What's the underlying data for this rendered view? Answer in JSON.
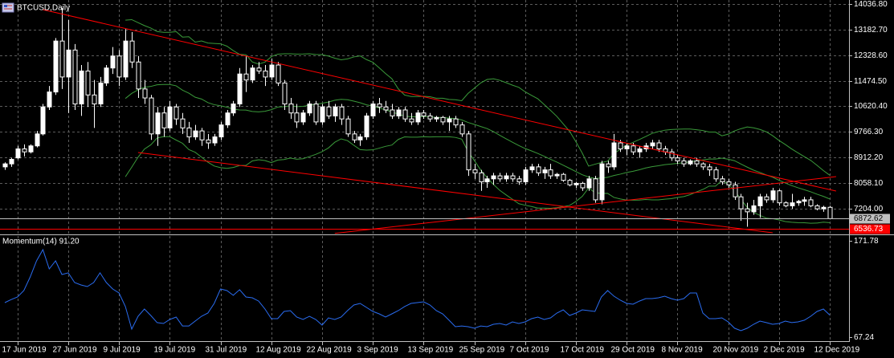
{
  "chart_data": [
    {
      "type": "candlestick",
      "title": "BTCUSD,Daily",
      "categories": [
        null,
        null,
        "17 Jun 2019",
        null,
        null,
        null,
        null,
        null,
        null,
        null,
        "27 Jun 2019",
        null,
        null,
        null,
        null,
        null,
        null,
        null,
        "9 Jul 2019",
        null,
        null,
        null,
        null,
        null,
        null,
        null,
        "19 Jul 2019",
        null,
        null,
        null,
        null,
        null,
        null,
        null,
        "31 Jul 2019",
        null,
        null,
        null,
        null,
        null,
        null,
        null,
        "12 Aug 2019",
        null,
        null,
        null,
        null,
        null,
        null,
        null,
        "22 Aug 2019",
        null,
        null,
        null,
        null,
        null,
        null,
        null,
        "3 Sep 2019",
        null,
        null,
        null,
        null,
        null,
        null,
        null,
        "13 Sep 2019",
        null,
        null,
        null,
        null,
        null,
        null,
        null,
        "25 Sep 2019",
        null,
        null,
        null,
        null,
        null,
        null,
        null,
        "7 Oct 2019",
        null,
        null,
        null,
        null,
        null,
        null,
        null,
        "17 Oct 2019",
        null,
        null,
        null,
        null,
        null,
        null,
        null,
        "29 Oct 2019",
        null,
        null,
        null,
        null,
        null,
        null,
        null,
        "8 Nov 2019",
        null,
        null,
        null,
        null,
        null,
        null,
        null,
        "20 Nov 2019",
        null,
        null,
        null,
        null,
        null,
        null,
        null,
        "2 Dec 2019",
        null,
        null,
        null,
        null,
        null,
        null,
        null,
        "12 Dec 2019"
      ],
      "ohlc": [
        [
          8600,
          8750,
          8500,
          8700
        ],
        [
          8700,
          8900,
          8600,
          8850
        ],
        [
          8900,
          9300,
          8850,
          9200
        ],
        [
          9200,
          9350,
          8950,
          9100
        ],
        [
          9100,
          9350,
          9050,
          9300
        ],
        [
          9300,
          9800,
          9250,
          9700
        ],
        [
          9700,
          10700,
          9650,
          10600
        ],
        [
          10600,
          11300,
          10500,
          11100
        ],
        [
          11100,
          12900,
          11000,
          12800
        ],
        [
          12800,
          13900,
          11200,
          11600
        ],
        [
          11600,
          13500,
          10400,
          12500
        ],
        [
          12500,
          12700,
          10500,
          10700
        ],
        [
          10700,
          12000,
          10300,
          11800
        ],
        [
          11800,
          12100,
          10600,
          11000
        ],
        [
          11000,
          11500,
          9900,
          10700
        ],
        [
          10700,
          11600,
          10600,
          11400
        ],
        [
          11400,
          12000,
          11300,
          11900
        ],
        [
          11900,
          12600,
          11700,
          12300
        ],
        [
          12300,
          12500,
          11300,
          11600
        ],
        [
          11600,
          13200,
          11500,
          12800
        ],
        [
          12800,
          13100,
          11900,
          12100
        ],
        [
          12100,
          12300,
          10900,
          11200
        ],
        [
          11200,
          11500,
          10700,
          10900
        ],
        [
          10900,
          11000,
          9500,
          9700
        ],
        [
          9700,
          10600,
          9300,
          10400
        ],
        [
          10400,
          10600,
          9600,
          9900
        ],
        [
          9900,
          10800,
          9800,
          10600
        ],
        [
          10600,
          10700,
          10000,
          10200
        ],
        [
          10200,
          10400,
          9700,
          9900
        ],
        [
          9900,
          10100,
          9400,
          9600
        ],
        [
          9600,
          10000,
          9500,
          9800
        ],
        [
          9800,
          9900,
          9300,
          9500
        ],
        [
          9500,
          9700,
          9200,
          9400
        ],
        [
          9400,
          9700,
          9300,
          9600
        ],
        [
          9600,
          10100,
          9500,
          10000
        ],
        [
          10000,
          10500,
          9900,
          10400
        ],
        [
          10400,
          10800,
          10300,
          10700
        ],
        [
          10700,
          11900,
          10600,
          11700
        ],
        [
          11700,
          12300,
          11100,
          11500
        ],
        [
          11500,
          12000,
          11400,
          11900
        ],
        [
          11900,
          12100,
          11700,
          11800
        ],
        [
          11800,
          12000,
          11300,
          11600
        ],
        [
          11600,
          12200,
          11500,
          12000
        ],
        [
          12000,
          12100,
          11300,
          11400
        ],
        [
          11400,
          11500,
          10500,
          10700
        ],
        [
          10700,
          10900,
          10200,
          10400
        ],
        [
          10400,
          10700,
          9900,
          10100
        ],
        [
          10100,
          10500,
          10000,
          10400
        ],
        [
          10400,
          10800,
          10300,
          10700
        ],
        [
          10700,
          10800,
          10000,
          10100
        ],
        [
          10100,
          10700,
          10000,
          10600
        ],
        [
          10600,
          10800,
          10200,
          10300
        ],
        [
          10300,
          10700,
          10100,
          10600
        ],
        [
          10600,
          10700,
          10000,
          10200
        ],
        [
          10200,
          10300,
          9600,
          9700
        ],
        [
          9700,
          9800,
          9400,
          9500
        ],
        [
          9500,
          9700,
          9300,
          9600
        ],
        [
          9600,
          10400,
          9500,
          10300
        ],
        [
          10300,
          10800,
          10200,
          10700
        ],
        [
          10700,
          10900,
          10400,
          10600
        ],
        [
          10600,
          10800,
          10400,
          10500
        ],
        [
          10500,
          10700,
          10200,
          10300
        ],
        [
          10300,
          10600,
          10200,
          10500
        ],
        [
          10500,
          10600,
          10100,
          10200
        ],
        [
          10200,
          10400,
          10000,
          10100
        ],
        [
          10100,
          10500,
          10000,
          10400
        ],
        [
          10400,
          10500,
          10200,
          10300
        ],
        [
          10300,
          10400,
          10100,
          10200
        ],
        [
          10200,
          10300,
          10100,
          10250
        ],
        [
          10250,
          10300,
          10000,
          10100
        ],
        [
          10100,
          10300,
          9800,
          10200
        ],
        [
          10200,
          10300,
          9900,
          10000
        ],
        [
          10000,
          10100,
          9600,
          9700
        ],
        [
          9700,
          9800,
          8300,
          8500
        ],
        [
          8500,
          8700,
          8200,
          8400
        ],
        [
          8400,
          8500,
          7800,
          8100
        ],
        [
          8100,
          8300,
          7900,
          8200
        ],
        [
          8200,
          8400,
          8000,
          8300
        ],
        [
          8300,
          8400,
          8100,
          8200
        ],
        [
          8200,
          8400,
          8100,
          8300
        ],
        [
          8300,
          8400,
          8100,
          8200
        ],
        [
          8200,
          8300,
          8000,
          8100
        ],
        [
          8100,
          8600,
          8000,
          8500
        ],
        [
          8500,
          8700,
          8400,
          8600
        ],
        [
          8600,
          8700,
          8300,
          8400
        ],
        [
          8400,
          8600,
          8200,
          8500
        ],
        [
          8500,
          8700,
          8200,
          8300
        ],
        [
          8300,
          8400,
          8200,
          8350
        ],
        [
          8350,
          8400,
          8100,
          8150
        ],
        [
          8150,
          8200,
          7950,
          8000
        ],
        [
          8000,
          8100,
          7900,
          8050
        ],
        [
          8050,
          8100,
          7800,
          7900
        ],
        [
          7900,
          8300,
          7800,
          8200
        ],
        [
          8200,
          8300,
          7400,
          7500
        ],
        [
          7500,
          8800,
          7350,
          8700
        ],
        [
          8700,
          8800,
          8400,
          8600
        ],
        [
          8600,
          9700,
          8500,
          9400
        ],
        [
          9400,
          9500,
          9100,
          9200
        ],
        [
          9200,
          9400,
          9000,
          9300
        ],
        [
          9300,
          9400,
          9000,
          9100
        ],
        [
          9100,
          9300,
          8900,
          9200
        ],
        [
          9200,
          9400,
          9100,
          9300
        ],
        [
          9300,
          9500,
          9200,
          9400
        ],
        [
          9400,
          9500,
          9100,
          9200
        ],
        [
          9200,
          9300,
          9000,
          9100
        ],
        [
          9100,
          9200,
          8800,
          8900
        ],
        [
          8900,
          9000,
          8700,
          8800
        ],
        [
          8800,
          8900,
          8600,
          8700
        ],
        [
          8700,
          8850,
          8650,
          8800
        ],
        [
          8800,
          8900,
          8600,
          8700
        ],
        [
          8700,
          8750,
          8500,
          8600
        ],
        [
          8600,
          8700,
          8300,
          8500
        ],
        [
          8500,
          8600,
          8100,
          8200
        ],
        [
          8200,
          8300,
          8000,
          8100
        ],
        [
          8100,
          8200,
          7900,
          8000
        ],
        [
          8000,
          8100,
          7500,
          7600
        ],
        [
          7600,
          7700,
          6800,
          7200
        ],
        [
          7200,
          7400,
          6600,
          7100
        ],
        [
          7100,
          7500,
          7000,
          7300
        ],
        [
          7300,
          7700,
          6900,
          7600
        ],
        [
          7600,
          7700,
          7400,
          7500
        ],
        [
          7500,
          7900,
          7400,
          7800
        ],
        [
          7800,
          7850,
          7300,
          7400
        ],
        [
          7400,
          7450,
          7250,
          7300
        ],
        [
          7300,
          7700,
          7200,
          7400
        ],
        [
          7400,
          7500,
          7300,
          7450
        ],
        [
          7450,
          7600,
          7300,
          7500
        ],
        [
          7500,
          7600,
          7250,
          7300
        ],
        [
          7300,
          7350,
          7150,
          7200
        ],
        [
          7200,
          7300,
          7100,
          7250
        ],
        [
          7250,
          7300,
          6850,
          6872.62
        ]
      ],
      "ylim": [
        6373,
        14170
      ],
      "yticks": [
        {
          "value": 14036.8,
          "label": "14036.80"
        },
        {
          "value": 13182.7,
          "label": "13182.70"
        },
        {
          "value": 12328.6,
          "label": "12328.60"
        },
        {
          "value": 11474.5,
          "label": "11474.50"
        },
        {
          "value": 10620.4,
          "label": "10620.40"
        },
        {
          "value": 9766.3,
          "label": "9766.30"
        },
        {
          "value": 8912.2,
          "label": "8912.20"
        },
        {
          "value": 8058.1,
          "label": "8058.10"
        },
        {
          "value": 7204,
          "label": "7204.00"
        }
      ],
      "current_price": {
        "value": 6872.62,
        "label": "6872.62",
        "color": "#c0c0c0"
      },
      "level": {
        "value": 6536.73,
        "label": "6536.73",
        "color": "#ff0000"
      },
      "trendlines": [
        {
          "from": [
            6,
            13849
          ],
          "to": [
            131,
            7792
          ]
        },
        {
          "from": [
            21,
            9079
          ],
          "to": [
            121,
            6399
          ]
        },
        {
          "from": [
            52,
            6380
          ],
          "to": [
            131,
            8275
          ]
        }
      ],
      "trendline_color": "#ff0000",
      "up_color": "#ffffff",
      "down_color": "#000000",
      "wick_color": "#ffffff",
      "band_color": "#3a9a3a",
      "grid": true
    },
    {
      "type": "line",
      "title": "Momentum(14) 91.20",
      "color": "#2a6cf0",
      "values": [
        104.7,
        108,
        110.8,
        117.8,
        132.6,
        150,
        162.2,
        141.3,
        150,
        135.2,
        137,
        126.5,
        123.9,
        122.1,
        126.5,
        137,
        126.5,
        119.5,
        115.2,
        100.4,
        76,
        89.9,
        97.7,
        90.8,
        83,
        82.1,
        86.4,
        89,
        79.4,
        79.4,
        84.7,
        89.9,
        93.4,
        103.8,
        119.5,
        117.8,
        112.6,
        118.7,
        110.8,
        109.9,
        106.4,
        97.7,
        87.3,
        87.3,
        95.1,
        96,
        89,
        86.4,
        89.9,
        86.4,
        80.3,
        88.2,
        86.4,
        89,
        96,
        102.1,
        103.8,
        99.5,
        95.1,
        92.5,
        89,
        92.5,
        96,
        100.4,
        103.8,
        104.7,
        105.6,
        102.1,
        96,
        92.5,
        85.6,
        78.6,
        79.4,
        78.6,
        76.9,
        79.4,
        78.6,
        81.2,
        82.1,
        80.3,
        83.8,
        82.1,
        83.8,
        87.3,
        89,
        86.4,
        88.2,
        93.4,
        96.9,
        90.8,
        93.4,
        96.9,
        96,
        95.1,
        110.8,
        117.8,
        111.7,
        107.3,
        103.8,
        103,
        106.4,
        109.1,
        109.1,
        109.9,
        111.7,
        109.1,
        107.3,
        109.1,
        115.2,
        115.2,
        93.4,
        87.3,
        87.3,
        88.2,
        83.8,
        76.9,
        74.2,
        76.9,
        81.2,
        84.7,
        83,
        81.2,
        82.1,
        84.7,
        83,
        83.8,
        85.6,
        89.9,
        95.1,
        97.7,
        91.2
      ],
      "ylim": [
        62.9,
        177
      ],
      "yticks": [
        171.78,
        67.24
      ]
    }
  ]
}
